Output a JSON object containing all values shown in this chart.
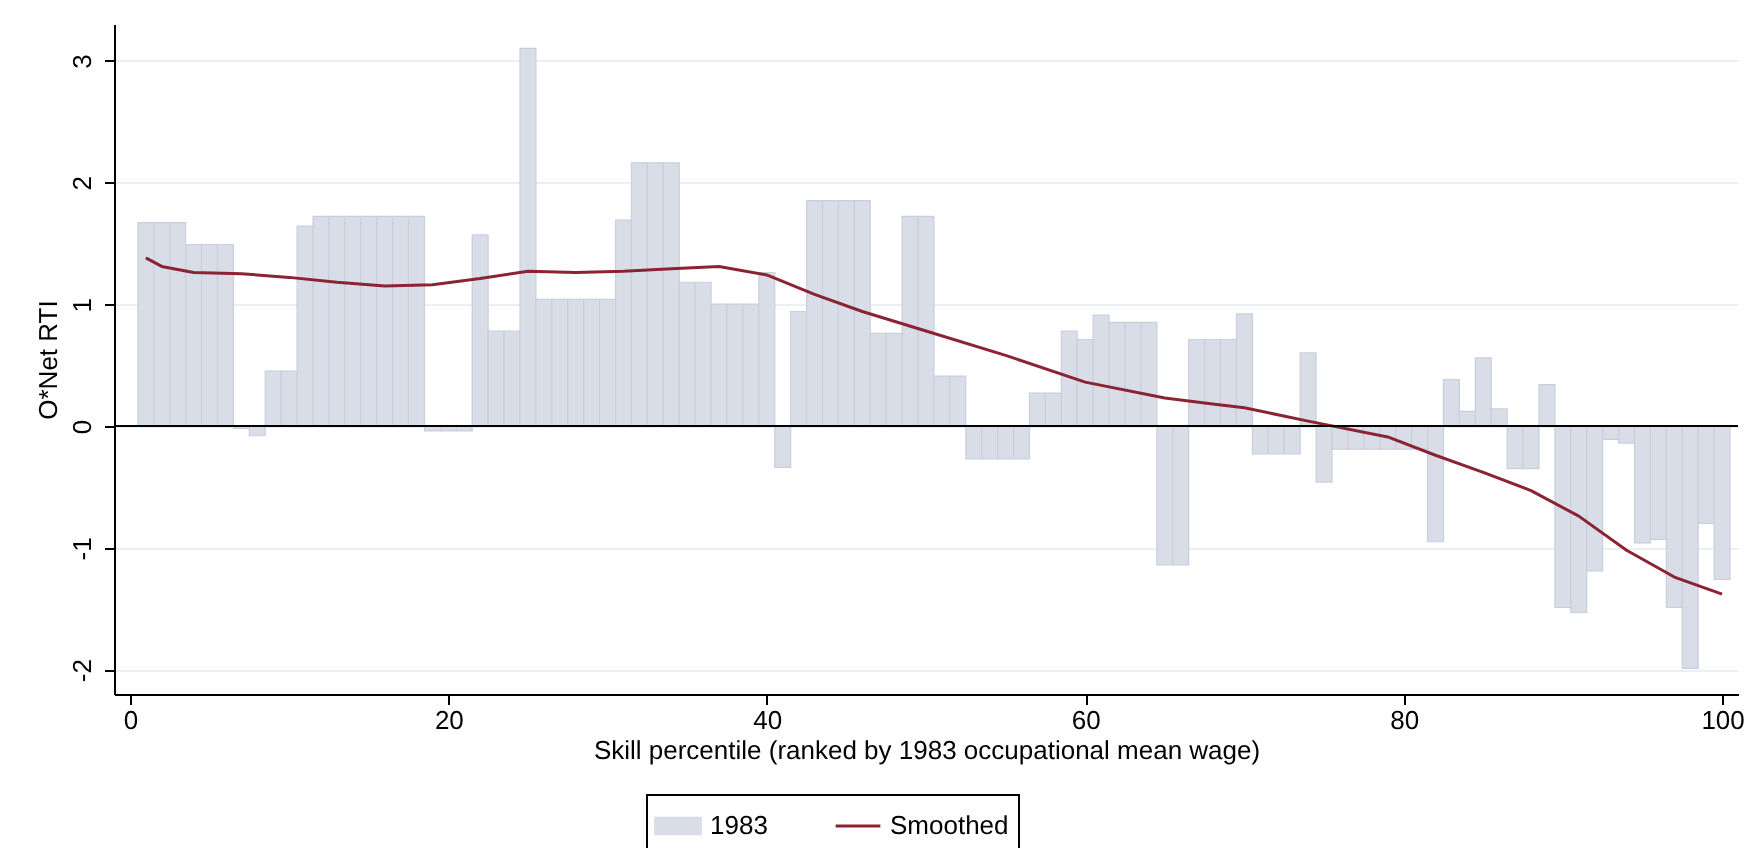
{
  "chart_data": {
    "type": "bar",
    "xlabel": "Skill percentile (ranked by 1983 occupational mean wage)",
    "ylabel": "O*Net RTI",
    "x": [
      1,
      2,
      3,
      4,
      5,
      6,
      7,
      8,
      9,
      10,
      11,
      12,
      13,
      14,
      15,
      16,
      17,
      18,
      19,
      20,
      21,
      22,
      23,
      24,
      25,
      26,
      27,
      28,
      29,
      30,
      31,
      32,
      33,
      34,
      35,
      36,
      37,
      38,
      39,
      40,
      41,
      42,
      43,
      44,
      45,
      46,
      47,
      48,
      49,
      50,
      51,
      52,
      53,
      54,
      55,
      56,
      57,
      58,
      59,
      60,
      61,
      62,
      63,
      64,
      65,
      66,
      67,
      68,
      69,
      70,
      71,
      72,
      73,
      74,
      75,
      76,
      77,
      78,
      79,
      80,
      81,
      82,
      83,
      84,
      85,
      86,
      87,
      88,
      89,
      90,
      91,
      92,
      93,
      94,
      95,
      96,
      97,
      98,
      99,
      100
    ],
    "series": [
      {
        "name": "1983",
        "color": "#d9dde8",
        "values": [
          1.67,
          1.67,
          1.67,
          1.49,
          1.49,
          1.49,
          -0.02,
          -0.08,
          0.45,
          0.45,
          1.64,
          1.72,
          1.72,
          1.72,
          1.72,
          1.72,
          1.72,
          1.72,
          -0.04,
          -0.04,
          -0.04,
          1.57,
          0.78,
          0.78,
          3.1,
          1.04,
          1.04,
          1.04,
          1.04,
          1.04,
          1.69,
          2.16,
          2.16,
          2.16,
          1.18,
          1.18,
          1.0,
          1.0,
          1.0,
          1.26,
          -0.34,
          0.94,
          1.85,
          1.85,
          1.85,
          1.85,
          0.76,
          0.76,
          1.72,
          1.72,
          0.41,
          0.41,
          -0.27,
          -0.27,
          -0.27,
          -0.27,
          0.27,
          0.27,
          0.78,
          0.71,
          0.91,
          0.85,
          0.85,
          0.85,
          -1.14,
          -1.14,
          0.71,
          0.71,
          0.71,
          0.92,
          -0.23,
          -0.23,
          -0.23,
          0.6,
          -0.46,
          -0.19,
          -0.19,
          -0.19,
          -0.19,
          -0.19,
          -0.19,
          -0.95,
          0.38,
          0.12,
          0.56,
          0.14,
          -0.35,
          -0.35,
          0.34,
          -1.49,
          -1.53,
          -1.19,
          -0.11,
          -0.14,
          -0.96,
          -0.93,
          -1.49,
          -1.99,
          -0.8,
          -1.26
        ]
      },
      {
        "name": "Smoothed",
        "type": "line",
        "color": "#8b2332",
        "x": [
          1,
          2,
          4,
          7,
          10,
          13,
          16,
          19,
          22,
          25,
          28,
          31,
          34,
          37,
          40,
          43,
          46,
          50,
          55,
          60,
          65,
          68,
          70,
          74,
          79,
          82,
          85,
          88,
          91,
          94,
          97,
          100
        ],
        "values": [
          1.38,
          1.31,
          1.26,
          1.25,
          1.22,
          1.18,
          1.15,
          1.16,
          1.21,
          1.27,
          1.26,
          1.27,
          1.29,
          1.31,
          1.24,
          1.08,
          0.94,
          0.78,
          0.58,
          0.36,
          0.23,
          0.18,
          0.15,
          0.04,
          -0.09,
          -0.24,
          -0.38,
          -0.53,
          -0.74,
          -1.02,
          -1.24,
          -1.38
        ]
      }
    ],
    "xlim": [
      -1,
      101
    ],
    "xticks": [
      0,
      20,
      40,
      60,
      80,
      100
    ],
    "ylim": [
      -2.2,
      3.3
    ],
    "yticks": [
      -2,
      -1,
      0,
      1,
      2,
      3
    ],
    "ref_lines": [
      {
        "axis": "y",
        "value": 0,
        "color": "#000000"
      }
    ],
    "grid": "y",
    "legend": "bottom"
  }
}
